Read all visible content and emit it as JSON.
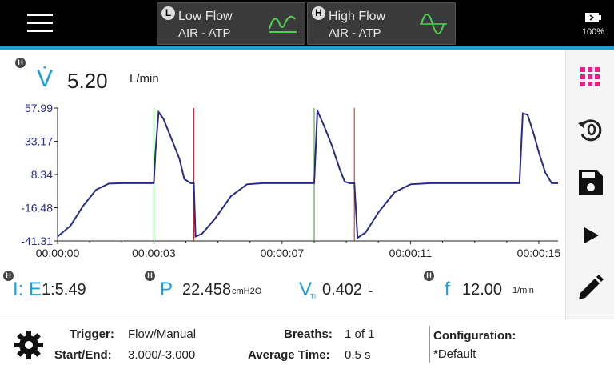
{
  "topbar": {
    "tabs": [
      {
        "badge": "L",
        "title": "Low Flow",
        "subtitle": "AIR - ATP",
        "icon": "low-flow-wave-icon"
      },
      {
        "badge": "H",
        "title": "High Flow",
        "subtitle": "AIR - ATP",
        "icon": "high-flow-wave-icon"
      }
    ],
    "battery": {
      "percent": "100%",
      "icon": "battery-icon"
    }
  },
  "measurement": {
    "badge": "H",
    "symbol": "V̇",
    "value": "5.20",
    "unit": "L/min"
  },
  "metrics": [
    {
      "badge": "H",
      "symbol": "I: E",
      "value": "1:5.49",
      "unit": ""
    },
    {
      "badge": "H",
      "symbol": "P",
      "value": "22.458",
      "unit": "cmH2O"
    },
    {
      "badge": "",
      "symbol": "V",
      "sub": "TI",
      "value": "0.402",
      "unit": "L"
    },
    {
      "badge": "H",
      "symbol": "f",
      "value": "12.00",
      "unit": "1/min"
    }
  ],
  "sidebar": {
    "icons": [
      "grid-icon",
      "reset-icon",
      "save-icon",
      "play-icon",
      "edit-icon"
    ]
  },
  "bottom": {
    "trigger_label": "Trigger:",
    "trigger_value": "Flow/Manual",
    "startend_label": "Start/End:",
    "startend_value": "3.000/-3.000",
    "breaths_label": "Breaths:",
    "breaths_value": "1 of 1",
    "avgtime_label": "Average Time:",
    "avgtime_value": "0.5 s",
    "config_label": "Configuration:",
    "config_value": "*Default"
  },
  "colors": {
    "accent": "#1d9fd8",
    "trace": "#2a2a8c",
    "start_marker": "#2e9d2e",
    "end_marker": "#d02020",
    "grid_icon": "#e91e8c"
  },
  "chart_data": {
    "type": "line",
    "ylim": [
      -41.31,
      57.99
    ],
    "yticks": [
      "57.99",
      "33.17",
      "8.34",
      "-16.48",
      "-41.31"
    ],
    "xticks": [
      "00:00:00",
      "00:00:03",
      "00:00:07",
      "00:00:11",
      "00:00:15"
    ],
    "xtick_seconds": [
      0,
      3,
      7,
      11,
      15
    ],
    "xlim": [
      0,
      15.6
    ],
    "series": [
      {
        "x": [
          0.0,
          0.4,
          0.8,
          1.2,
          1.6,
          2.0,
          2.6,
          3.0,
          3.05,
          3.15,
          3.3,
          3.55,
          3.8,
          3.95,
          4.15,
          4.25,
          4.3,
          4.5,
          4.9,
          5.4,
          5.9,
          6.4,
          7.0,
          7.6,
          8.0,
          8.1,
          8.3,
          8.55,
          8.8,
          8.95,
          9.1,
          9.25,
          9.35,
          9.6,
          10.0,
          10.5,
          11.0,
          11.6,
          12.2,
          12.8,
          13.4,
          14.0,
          14.4,
          14.5,
          14.65,
          14.85,
          15.0,
          15.2,
          15.4,
          15.6
        ],
        "y": [
          -38,
          -30,
          -15,
          -3,
          1.5,
          1.8,
          1.8,
          1.8,
          25,
          55,
          50,
          35,
          20,
          5,
          1.8,
          1.8,
          -38,
          -36,
          -25,
          -8,
          1,
          1.8,
          1.8,
          1.8,
          1.8,
          56,
          45,
          30,
          12,
          3,
          1.8,
          1.8,
          -39,
          -35,
          -20,
          -5,
          1,
          1.8,
          1.8,
          1.8,
          1.8,
          1.8,
          1.8,
          54,
          53,
          38,
          25,
          10,
          1.8,
          1.8
        ]
      }
    ],
    "markers": [
      {
        "type": "start",
        "x": 3.0
      },
      {
        "type": "end",
        "x": 4.25
      },
      {
        "type": "start",
        "x": 8.0
      },
      {
        "type": "end",
        "x": 9.25
      }
    ]
  }
}
